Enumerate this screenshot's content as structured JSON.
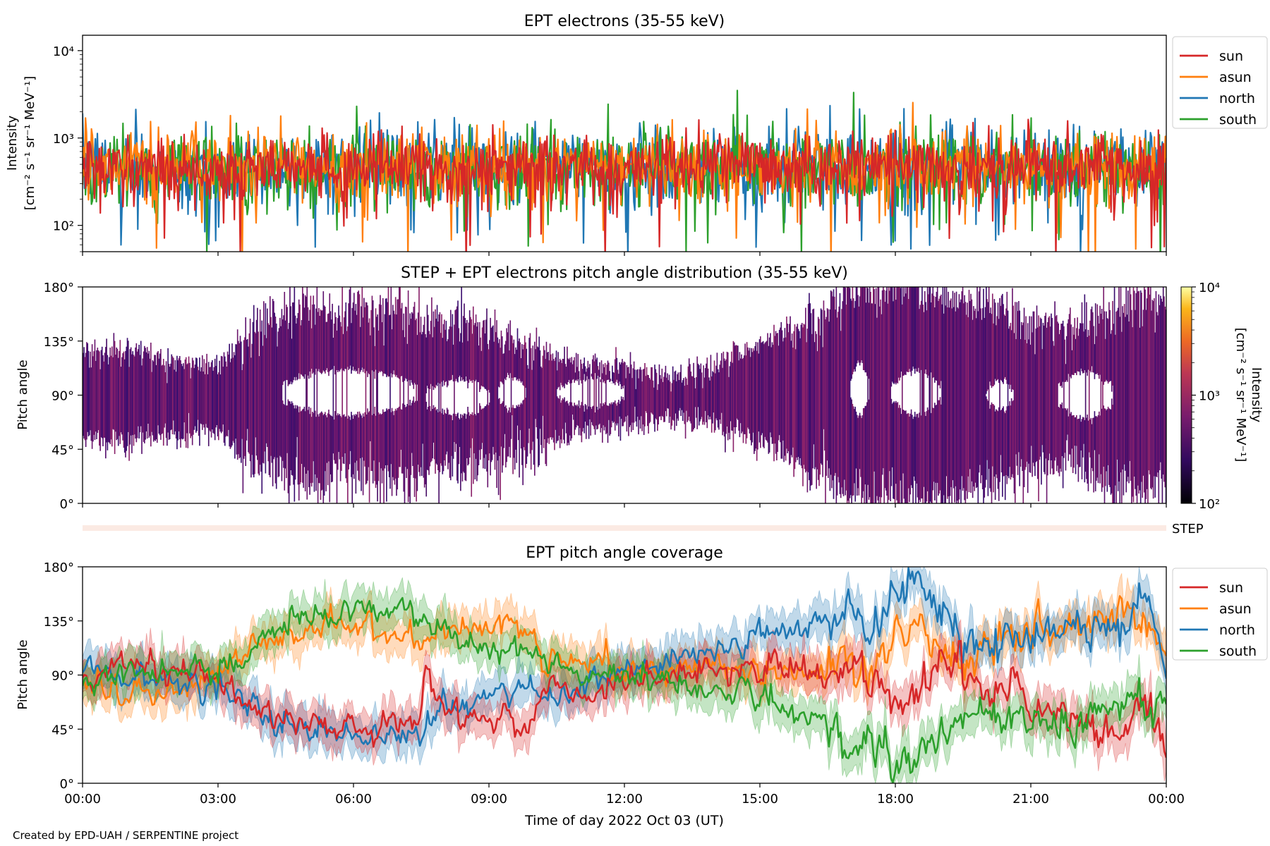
{
  "figure": {
    "credit": "Created by EPD-UAH / SERPENTINE project",
    "xlabel": "Time of day 2022 Oct 03 (UT)",
    "xticks": [
      "00:00",
      "03:00",
      "06:00",
      "09:00",
      "12:00",
      "15:00",
      "18:00",
      "21:00",
      "00:00"
    ]
  },
  "chart_data": [
    {
      "type": "line",
      "title": "EPT electrons (35-55 keV)",
      "ylabel_line1": "Intensity",
      "ylabel_line2": "[cm⁻² s⁻¹ sr⁻¹ MeV⁻¹]",
      "yscale": "log",
      "ylim": [
        50,
        15000
      ],
      "yticks": [
        {
          "value": 100,
          "label": "10²"
        },
        {
          "value": 1000,
          "label": "10³"
        },
        {
          "value": 10000,
          "label": "10⁴"
        }
      ],
      "x_range_hours": [
        0,
        24
      ],
      "legend_position": "outside-right",
      "series": [
        {
          "name": "sun",
          "color": "#d62728",
          "typical": 470,
          "spread": 0.18
        },
        {
          "name": "asun",
          "color": "#ff7f0e",
          "typical": 480,
          "spread": 0.2
        },
        {
          "name": "north",
          "color": "#1f77b4",
          "typical": 470,
          "spread": 0.22
        },
        {
          "name": "south",
          "color": "#2ca02c",
          "typical": 480,
          "spread": 0.22
        }
      ]
    },
    {
      "type": "heatmap",
      "title": "STEP + EPT electrons pitch angle distribution (35-55 keV)",
      "ylabel": "Pitch angle",
      "ylim": [
        0,
        180
      ],
      "yticks": [
        "0°",
        "45°",
        "90°",
        "135°",
        "180°"
      ],
      "colorbar": {
        "label_line1": "Intensity",
        "label_line2": "[cm⁻² s⁻¹ sr⁻¹ MeV⁻¹]",
        "scale": "log",
        "range": [
          100,
          10000
        ],
        "ticks": [
          "10²",
          "10³",
          "10⁴"
        ]
      },
      "typical_intensity": 500,
      "step_label": "STEP",
      "upper_edge": [
        [
          0,
          125
        ],
        [
          1,
          128
        ],
        [
          2,
          118
        ],
        [
          3,
          115
        ],
        [
          3.6,
          140
        ],
        [
          4.5,
          160
        ],
        [
          5,
          165
        ],
        [
          6,
          158
        ],
        [
          7,
          165
        ],
        [
          7.5,
          150
        ],
        [
          8,
          150
        ],
        [
          9,
          145
        ],
        [
          10,
          130
        ],
        [
          11,
          115
        ],
        [
          12,
          115
        ],
        [
          13,
          105
        ],
        [
          14,
          115
        ],
        [
          15,
          135
        ],
        [
          16,
          150
        ],
        [
          17,
          175
        ],
        [
          18,
          180
        ],
        [
          19,
          175
        ],
        [
          20,
          165
        ],
        [
          21,
          150
        ],
        [
          22,
          150
        ],
        [
          23,
          165
        ],
        [
          24,
          170
        ]
      ],
      "lower_edge": [
        [
          0,
          55
        ],
        [
          1,
          50
        ],
        [
          2,
          58
        ],
        [
          3,
          62
        ],
        [
          3.6,
          35
        ],
        [
          4.5,
          25
        ],
        [
          5,
          15
        ],
        [
          6,
          25
        ],
        [
          7,
          15
        ],
        [
          7.5,
          20
        ],
        [
          8,
          30
        ],
        [
          9,
          35
        ],
        [
          10,
          45
        ],
        [
          11,
          60
        ],
        [
          12,
          65
        ],
        [
          13,
          70
        ],
        [
          14,
          65
        ],
        [
          15,
          50
        ],
        [
          16,
          30
        ],
        [
          17,
          10
        ],
        [
          18,
          0
        ],
        [
          19,
          5
        ],
        [
          20,
          15
        ],
        [
          21,
          30
        ],
        [
          22,
          30
        ],
        [
          23,
          15
        ],
        [
          24,
          5
        ]
      ],
      "gaps": [
        {
          "start": 4.4,
          "end": 7.4,
          "center": 92,
          "half": 20
        },
        {
          "start": 7.6,
          "end": 9.0,
          "center": 88,
          "half": 15
        },
        {
          "start": 9.2,
          "end": 9.8,
          "center": 92,
          "half": 14
        },
        {
          "start": 10.5,
          "end": 12.0,
          "center": 92,
          "half": 12
        },
        {
          "start": 17.0,
          "end": 17.4,
          "center": 95,
          "half": 22
        },
        {
          "start": 17.9,
          "end": 19.0,
          "center": 92,
          "half": 18
        },
        {
          "start": 20.0,
          "end": 20.6,
          "center": 90,
          "half": 12
        },
        {
          "start": 21.6,
          "end": 22.8,
          "center": 90,
          "half": 20
        }
      ]
    },
    {
      "type": "line",
      "title": "EPT pitch angle coverage",
      "ylabel": "Pitch angle",
      "ylim": [
        0,
        180
      ],
      "yticks": [
        "0°",
        "45°",
        "90°",
        "135°",
        "180°"
      ],
      "legend_position": "outside-right",
      "series": [
        {
          "name": "sun",
          "color": "#d62728",
          "points": [
            [
              0,
              90
            ],
            [
              1,
              100
            ],
            [
              2,
              95
            ],
            [
              3,
              88
            ],
            [
              3.6,
              70
            ],
            [
              4,
              60
            ],
            [
              5,
              50
            ],
            [
              6,
              45
            ],
            [
              7,
              48
            ],
            [
              7.5,
              55
            ],
            [
              7.6,
              95
            ],
            [
              8,
              60
            ],
            [
              9,
              55
            ],
            [
              10,
              50
            ],
            [
              10.2,
              80
            ],
            [
              11,
              70
            ],
            [
              12,
              85
            ],
            [
              13,
              90
            ],
            [
              14,
              95
            ],
            [
              15,
              95
            ],
            [
              16,
              92
            ],
            [
              17,
              90
            ],
            [
              17.5,
              85
            ],
            [
              18,
              65
            ],
            [
              18.5,
              80
            ],
            [
              19,
              110
            ],
            [
              19.5,
              90
            ],
            [
              20,
              80
            ],
            [
              21,
              70
            ],
            [
              22,
              50
            ],
            [
              23,
              40
            ],
            [
              23.5,
              70
            ],
            [
              24,
              30
            ]
          ]
        },
        {
          "name": "asun",
          "color": "#ff7f0e",
          "points": [
            [
              0,
              82
            ],
            [
              1,
              75
            ],
            [
              2,
              80
            ],
            [
              3,
              90
            ],
            [
              3.6,
              110
            ],
            [
              4,
              120
            ],
            [
              5,
              130
            ],
            [
              6,
              135
            ],
            [
              7,
              125
            ],
            [
              7.5,
              120
            ],
            [
              8,
              130
            ],
            [
              9,
              130
            ],
            [
              10,
              125
            ],
            [
              10.2,
              100
            ],
            [
              11,
              105
            ],
            [
              12,
              95
            ],
            [
              13,
              95
            ],
            [
              14,
              98
            ],
            [
              15,
              92
            ],
            [
              16,
              93
            ],
            [
              17,
              95
            ],
            [
              17.5,
              90
            ],
            [
              18,
              125
            ],
            [
              18.5,
              135
            ],
            [
              19,
              115
            ],
            [
              19.5,
              95
            ],
            [
              20,
              110
            ],
            [
              21,
              125
            ],
            [
              22,
              135
            ],
            [
              23,
              145
            ],
            [
              24,
              115
            ]
          ]
        },
        {
          "name": "north",
          "color": "#1f77b4",
          "points": [
            [
              0,
              100
            ],
            [
              1,
              90
            ],
            [
              2,
              85
            ],
            [
              3,
              82
            ],
            [
              3.6,
              75
            ],
            [
              4,
              55
            ],
            [
              5,
              45
            ],
            [
              6,
              40
            ],
            [
              7,
              42
            ],
            [
              7.5,
              45
            ],
            [
              8,
              55
            ],
            [
              9,
              75
            ],
            [
              10,
              85
            ],
            [
              10.2,
              70
            ],
            [
              11,
              80
            ],
            [
              12,
              90
            ],
            [
              13,
              100
            ],
            [
              14,
              110
            ],
            [
              15,
              120
            ],
            [
              16,
              130
            ],
            [
              17,
              150
            ],
            [
              17.5,
              120
            ],
            [
              18,
              165
            ],
            [
              18.5,
              160
            ],
            [
              19,
              145
            ],
            [
              19.5,
              130
            ],
            [
              20,
              120
            ],
            [
              21,
              125
            ],
            [
              22,
              130
            ],
            [
              23,
              135
            ],
            [
              23.6,
              160
            ],
            [
              24,
              90
            ]
          ]
        },
        {
          "name": "south",
          "color": "#2ca02c",
          "points": [
            [
              0,
              80
            ],
            [
              1,
              95
            ],
            [
              2,
              92
            ],
            [
              3,
              95
            ],
            [
              3.6,
              100
            ],
            [
              4,
              125
            ],
            [
              5,
              140
            ],
            [
              6,
              145
            ],
            [
              7,
              140
            ],
            [
              7.5,
              135
            ],
            [
              8,
              120
            ],
            [
              9,
              115
            ],
            [
              10,
              110
            ],
            [
              10.2,
              100
            ],
            [
              11,
              95
            ],
            [
              12,
              90
            ],
            [
              13,
              85
            ],
            [
              14,
              80
            ],
            [
              15,
              70
            ],
            [
              16,
              55
            ],
            [
              17,
              30
            ],
            [
              17.5,
              40
            ],
            [
              18,
              20
            ],
            [
              18.5,
              25
            ],
            [
              19,
              40
            ],
            [
              19.5,
              55
            ],
            [
              20,
              60
            ],
            [
              21,
              50
            ],
            [
              22,
              45
            ],
            [
              23,
              65
            ],
            [
              24,
              60
            ]
          ]
        }
      ]
    }
  ]
}
